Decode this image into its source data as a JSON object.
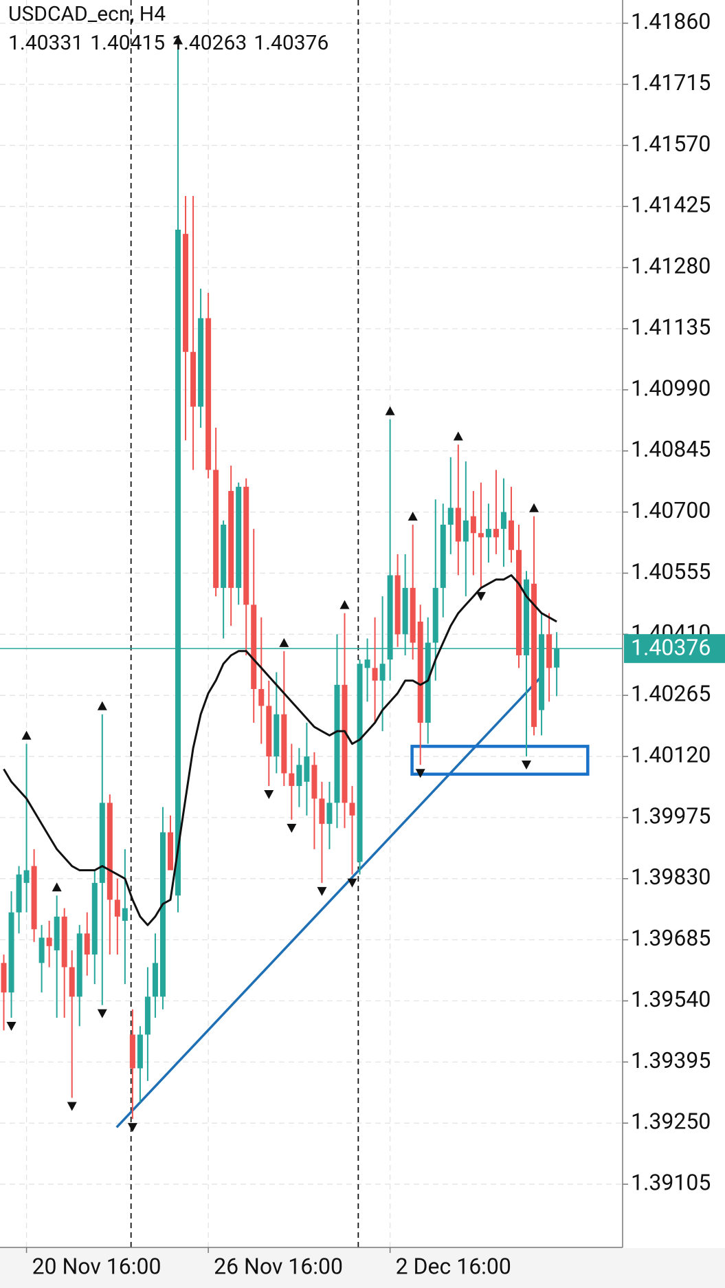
{
  "chart_data": {
    "type": "candlestick",
    "title": "USDCAD_ecn, H4",
    "header_values": [
      1.40331,
      1.40415,
      1.40263,
      1.40376
    ],
    "up_color": "#26a69a",
    "down_color": "#ef5350",
    "open": [
      1.3963,
      1.3956,
      1.3975,
      1.3982,
      1.3986,
      1.3963,
      1.3969,
      1.3966,
      1.3974,
      1.3962,
      1.3955,
      1.397,
      1.3965,
      1.3982,
      1.4001,
      1.3978,
      1.3973,
      1.3946,
      1.3938,
      1.3946,
      1.3955,
      1.3955,
      1.3994,
      1.3979,
      1.4136,
      1.4108,
      1.4095,
      1.4116,
      1.408,
      1.4052,
      1.4075,
      1.4052,
      1.4076,
      1.4048,
      1.4028,
      1.4024,
      1.4012,
      1.4022,
      1.4008,
      1.4005,
      1.4006,
      1.401,
      1.4002,
      1.3996,
      1.4001,
      1.4029,
      1.4001,
      1.3987,
      1.4033,
      1.4033,
      1.403,
      1.4035,
      1.4055,
      1.4041,
      1.4052,
      1.4044,
      1.402,
      1.4039,
      1.4052,
      1.4067,
      1.4071,
      1.4063,
      1.4069,
      1.4065,
      1.4064,
      1.4066,
      1.4066,
      1.4068,
      1.4061,
      1.4036,
      1.4053,
      1.4023,
      1.4041,
      1.40331
    ],
    "high": [
      1.3965,
      1.398,
      1.3986,
      1.4015,
      1.399,
      1.3972,
      1.3973,
      1.3979,
      1.3976,
      1.3966,
      1.3972,
      1.3975,
      1.3985,
      1.4022,
      1.4003,
      1.3983,
      1.399,
      1.3952,
      1.3948,
      1.3962,
      1.397,
      1.4,
      1.3998,
      1.418,
      1.4145,
      1.4145,
      1.4123,
      1.4122,
      1.409,
      1.4068,
      1.4081,
      1.4077,
      1.4078,
      1.4066,
      1.4045,
      1.403,
      1.4032,
      1.4037,
      1.4015,
      1.4014,
      1.402,
      1.4013,
      1.4006,
      1.4006,
      1.4041,
      1.4046,
      1.4005,
      1.4035,
      1.404,
      1.4045,
      1.405,
      1.4092,
      1.406,
      1.406,
      1.4067,
      1.4048,
      1.4045,
      1.4073,
      1.4072,
      1.4083,
      1.4086,
      1.4082,
      1.4075,
      1.4077,
      1.4072,
      1.408,
      1.4078,
      1.4076,
      1.4067,
      1.4056,
      1.4069,
      1.4046,
      1.4046,
      1.40415
    ],
    "low": [
      1.3947,
      1.395,
      1.397,
      1.3975,
      1.3968,
      1.3956,
      1.3962,
      1.395,
      1.395,
      1.3931,
      1.3948,
      1.396,
      1.3958,
      1.3953,
      1.3965,
      1.3965,
      1.3958,
      1.3926,
      1.393,
      1.3935,
      1.395,
      1.3952,
      1.3985,
      1.3975,
      1.4087,
      1.408,
      1.409,
      1.4078,
      1.405,
      1.404,
      1.4043,
      1.4048,
      1.4036,
      1.402,
      1.4015,
      1.4005,
      1.4008,
      1.4005,
      1.3997,
      1.4,
      1.3998,
      1.399,
      1.3982,
      1.399,
      1.3995,
      1.3995,
      1.3984,
      1.3984,
      1.4025,
      1.402,
      1.4018,
      1.403,
      1.4038,
      1.4036,
      1.4035,
      1.401,
      1.4015,
      1.403,
      1.4045,
      1.406,
      1.4055,
      1.405,
      1.4055,
      1.4052,
      1.4058,
      1.406,
      1.4057,
      1.4058,
      1.4033,
      1.4012,
      1.4017,
      1.4017,
      1.4025,
      1.40263
    ],
    "close": [
      1.3956,
      1.3975,
      1.3984,
      1.3985,
      1.3971,
      1.3969,
      1.3967,
      1.3974,
      1.3962,
      1.3955,
      1.397,
      1.3965,
      1.3982,
      1.4001,
      1.3978,
      1.3974,
      1.3976,
      1.3938,
      1.3946,
      1.3955,
      1.3963,
      1.3994,
      1.3985,
      1.4137,
      1.4108,
      1.4095,
      1.4116,
      1.408,
      1.4052,
      1.4067,
      1.4052,
      1.4076,
      1.4048,
      1.4028,
      1.4024,
      1.4012,
      1.4022,
      1.4008,
      1.4005,
      1.401,
      1.4012,
      1.4002,
      1.3996,
      1.4001,
      1.4029,
      1.4001,
      1.3998,
      1.4034,
      1.4035,
      1.403,
      1.4034,
      1.4055,
      1.4041,
      1.4052,
      1.4039,
      1.402,
      1.4039,
      1.4052,
      1.4067,
      1.4071,
      1.4063,
      1.4068,
      1.4065,
      1.4064,
      1.4066,
      1.4064,
      1.407,
      1.4061,
      1.4036,
      1.4054,
      1.4019,
      1.4041,
      1.4033,
      1.40376
    ],
    "ma": {
      "color": "#111111",
      "values": [
        1.4009,
        1.4006,
        1.4004,
        1.4002,
        1.3999,
        1.3996,
        1.3993,
        1.399,
        1.3988,
        1.3986,
        1.3985,
        1.3985,
        1.3985,
        1.3986,
        1.3985,
        1.3984,
        1.3983,
        1.3978,
        1.3974,
        1.3972,
        1.3974,
        1.3977,
        1.3978,
        1.399,
        1.4002,
        1.4014,
        1.4022,
        1.4027,
        1.403,
        1.4034,
        1.4036,
        1.4037,
        1.4037,
        1.4035,
        1.4033,
        1.4031,
        1.4029,
        1.4027,
        1.4025,
        1.4023,
        1.4021,
        1.4019,
        1.4018,
        1.4017,
        1.4018,
        1.4018,
        1.4015,
        1.4016,
        1.4018,
        1.402,
        1.4023,
        1.4025,
        1.4027,
        1.403,
        1.403,
        1.4029,
        1.403,
        1.4035,
        1.4039,
        1.4043,
        1.4046,
        1.4048,
        1.405,
        1.4052,
        1.4053,
        1.4054,
        1.4054,
        1.4055,
        1.4053,
        1.405,
        1.4048,
        1.4046,
        1.4045,
        1.4044
      ]
    },
    "fractals_up": [
      3,
      7,
      13,
      23,
      37,
      45,
      51,
      54,
      60,
      70
    ],
    "fractals_down": [
      1,
      9,
      13,
      17,
      35,
      38,
      42,
      46,
      55,
      63,
      69
    ],
    "last_price": 1.40376,
    "last_price_color": "#26a69a",
    "trendline": {
      "x": [
        14.9,
        71.0
      ],
      "y": [
        1.3924,
        1.4031
      ],
      "color": "#1f6fb5"
    },
    "rectangle": {
      "x": [
        53.9,
        77.1
      ],
      "y": [
        1.40078,
        1.40144
      ],
      "color": "#1a73c8"
    },
    "vlines": [
      16.8,
      46.8
    ],
    "xlim": [
      -0.5,
      81.7
    ],
    "ylim": [
      1.38955,
      1.41915
    ],
    "xticks": [
      {
        "value": 3,
        "label": "20 Nov 16:00"
      },
      {
        "value": 27,
        "label": "26 Nov 16:00"
      },
      {
        "value": 51,
        "label": "2 Dec 16:00"
      }
    ],
    "yticks": [
      {
        "value": 1.4186,
        "label": "1.41860"
      },
      {
        "value": 1.41715,
        "label": "1.41715"
      },
      {
        "value": 1.4157,
        "label": "1.41570"
      },
      {
        "value": 1.41425,
        "label": "1.41425"
      },
      {
        "value": 1.4128,
        "label": "1.41280"
      },
      {
        "value": 1.41135,
        "label": "1.41135"
      },
      {
        "value": 1.4099,
        "label": "1.40990"
      },
      {
        "value": 1.40845,
        "label": "1.40845"
      },
      {
        "value": 1.407,
        "label": "1.40700"
      },
      {
        "value": 1.40555,
        "label": "1.40555"
      },
      {
        "value": 1.4041,
        "label": "1.40410"
      },
      {
        "value": 1.40265,
        "label": "1.40265"
      },
      {
        "value": 1.4012,
        "label": "1.40120"
      },
      {
        "value": 1.39975,
        "label": "1.39975"
      },
      {
        "value": 1.3983,
        "label": "1.39830"
      },
      {
        "value": 1.39685,
        "label": "1.39685"
      },
      {
        "value": 1.3954,
        "label": "1.39540"
      },
      {
        "value": 1.39395,
        "label": "1.39395"
      },
      {
        "value": 1.3925,
        "label": "1.39250"
      },
      {
        "value": 1.39105,
        "label": "1.39105"
      }
    ],
    "grid": true
  }
}
